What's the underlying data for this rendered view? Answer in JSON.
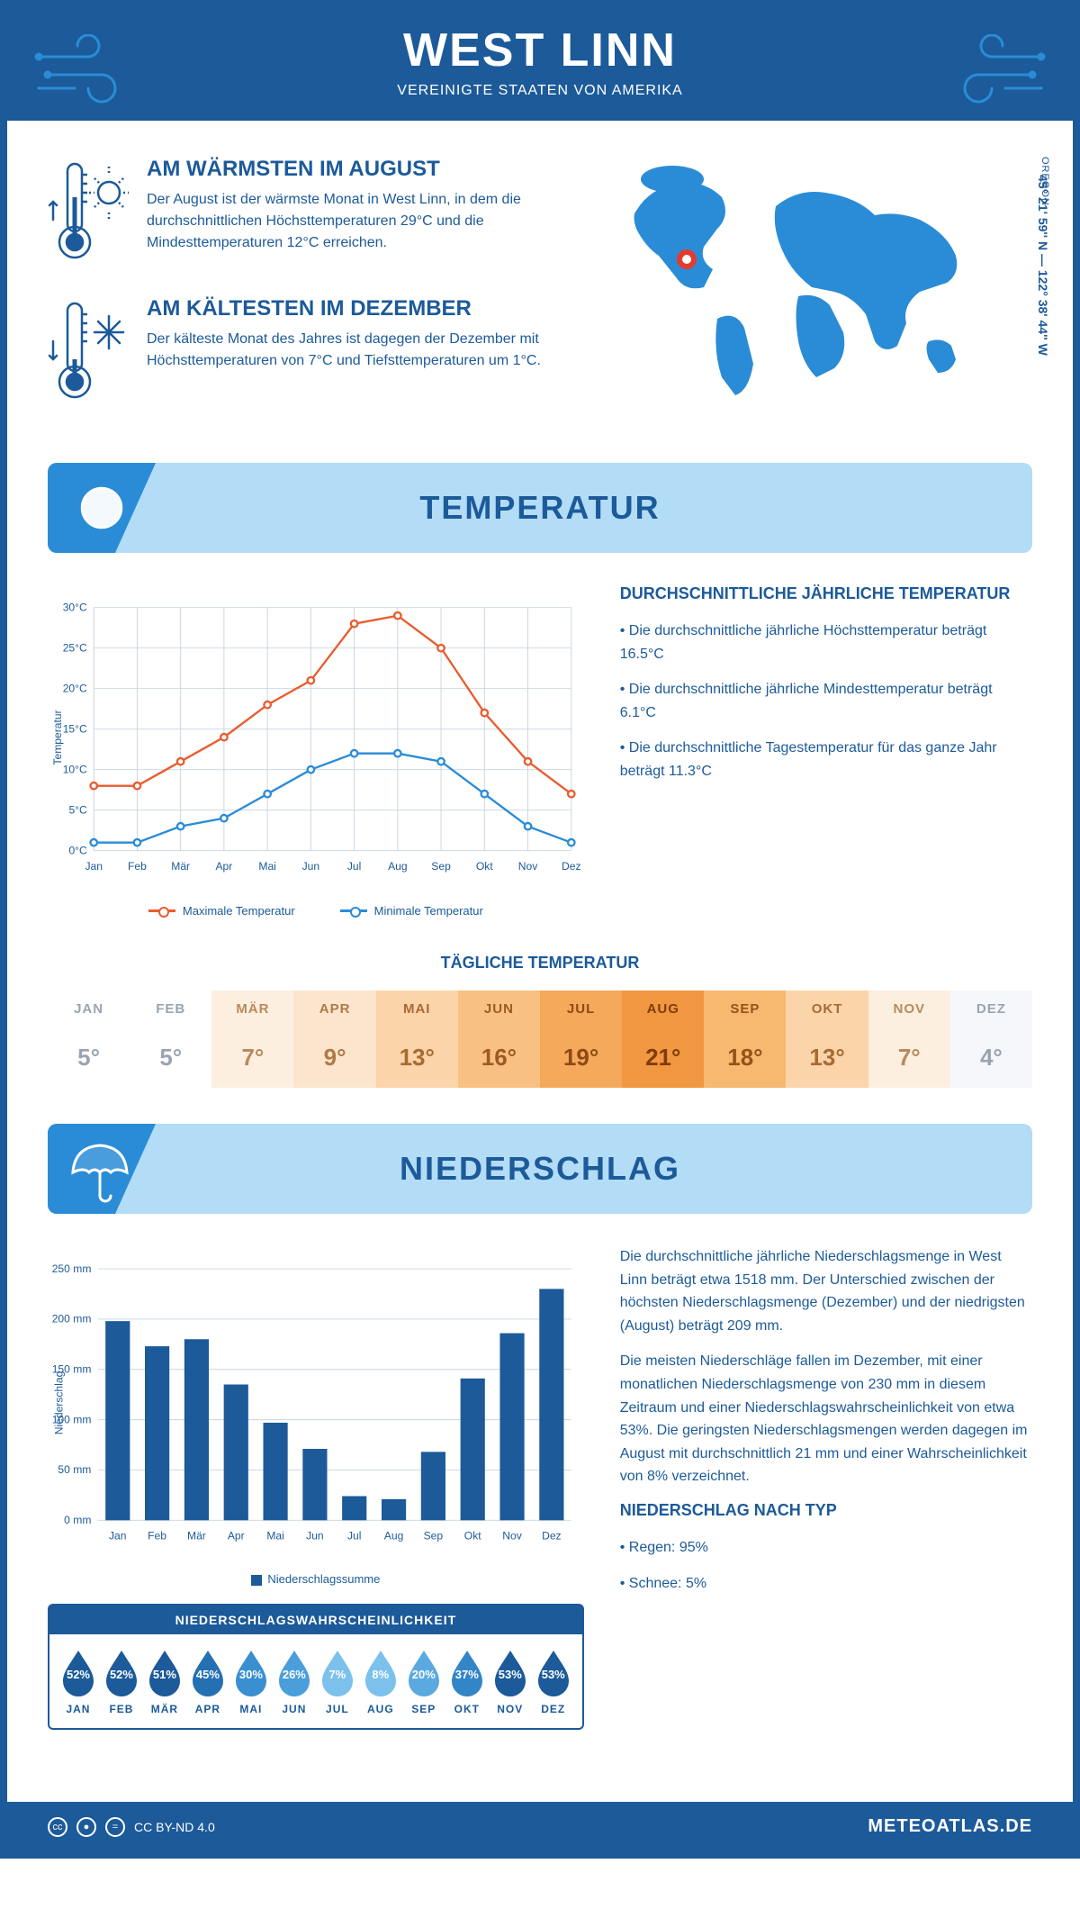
{
  "header": {
    "title": "WEST LINN",
    "subtitle": "VEREINIGTE STAATEN VON AMERIKA"
  },
  "location": {
    "region": "OREGON",
    "coords": "45° 21' 59'' N — 122° 38' 44'' W"
  },
  "facts": {
    "warm": {
      "title": "AM WÄRMSTEN IM AUGUST",
      "text": "Der August ist der wärmste Monat in West Linn, in dem die durchschnittlichen Höchsttemperaturen 29°C und die Mindesttemperaturen 12°C erreichen."
    },
    "cold": {
      "title": "AM KÄLTESTEN IM DEZEMBER",
      "text": "Der kälteste Monat des Jahres ist dagegen der Dezember mit Höchsttemperaturen von 7°C und Tiefsttemperaturen um 1°C."
    }
  },
  "temp_section": {
    "title": "TEMPERATUR",
    "chart": {
      "months": [
        "Jan",
        "Feb",
        "Mär",
        "Apr",
        "Mai",
        "Jun",
        "Jul",
        "Aug",
        "Sep",
        "Okt",
        "Nov",
        "Dez"
      ],
      "max_values": [
        8,
        8,
        11,
        14,
        18,
        21,
        28,
        29,
        25,
        17,
        11,
        7
      ],
      "min_values": [
        1,
        1,
        3,
        4,
        7,
        10,
        12,
        12,
        11,
        7,
        3,
        1
      ],
      "ymin": 0,
      "ymax": 30,
      "ystep": 5,
      "max_color": "#e85c2f",
      "min_color": "#2a8cd6",
      "grid_color": "#c8d4e0",
      "ylabel": "Temperatur",
      "legend_max": "Maximale Temperatur",
      "legend_min": "Minimale Temperatur"
    },
    "summary": {
      "heading": "DURCHSCHNITTLICHE JÄHRLICHE TEMPERATUR",
      "b1": "• Die durchschnittliche jährliche Höchsttemperatur beträgt 16.5°C",
      "b2": "• Die durchschnittliche jährliche Mindesttemperatur beträgt 6.1°C",
      "b3": "• Die durchschnittliche Tagestemperatur für das ganze Jahr beträgt 11.3°C"
    },
    "daily": {
      "title": "TÄGLICHE TEMPERATUR",
      "months": [
        "JAN",
        "FEB",
        "MÄR",
        "APR",
        "MAI",
        "JUN",
        "JUL",
        "AUG",
        "SEP",
        "OKT",
        "NOV",
        "DEZ"
      ],
      "values": [
        "5°",
        "5°",
        "7°",
        "9°",
        "13°",
        "16°",
        "19°",
        "21°",
        "18°",
        "13°",
        "7°",
        "4°"
      ],
      "bg_colors": [
        "#ffffff",
        "#ffffff",
        "#fdefe0",
        "#fce5cd",
        "#fbd4a9",
        "#f9c181",
        "#f5a95b",
        "#f29741",
        "#f7b86f",
        "#fbd4a9",
        "#fdefe0",
        "#f6f7fb"
      ],
      "text_colors": [
        "#9aa4b0",
        "#9aa4b0",
        "#b88a5a",
        "#b07a44",
        "#a86a34",
        "#9e5a24",
        "#8e4a14",
        "#7e3d08",
        "#965218",
        "#a86a34",
        "#b88a5a",
        "#9aa4b0"
      ]
    }
  },
  "precip_section": {
    "title": "NIEDERSCHLAG",
    "chart": {
      "months": [
        "Jan",
        "Feb",
        "Mär",
        "Apr",
        "Mai",
        "Jun",
        "Jul",
        "Aug",
        "Sep",
        "Okt",
        "Nov",
        "Dez"
      ],
      "values": [
        198,
        173,
        180,
        135,
        97,
        71,
        24,
        21,
        68,
        141,
        186,
        230
      ],
      "ymin": 0,
      "ymax": 250,
      "ystep": 50,
      "bar_color": "#1c5a99",
      "grid_color": "#c8d4e0",
      "ylabel": "Niederschlag",
      "legend": "Niederschlagssumme"
    },
    "text": {
      "p1": "Die durchschnittliche jährliche Niederschlagsmenge in West Linn beträgt etwa 1518 mm. Der Unterschied zwischen der höchsten Niederschlagsmenge (Dezember) und der niedrigsten (August) beträgt 209 mm.",
      "p2": "Die meisten Niederschläge fallen im Dezember, mit einer monatlichen Niederschlagsmenge von 230 mm in diesem Zeitraum und einer Niederschlagswahrscheinlichkeit von etwa 53%. Die geringsten Niederschlagsmengen werden dagegen im August mit durchschnittlich 21 mm und einer Wahrscheinlichkeit von 8% verzeichnet.",
      "h": "NIEDERSCHLAG NACH TYP",
      "t1": "• Regen: 95%",
      "t2": "• Schnee: 5%"
    },
    "prob": {
      "title": "NIEDERSCHLAGSWAHRSCHEINLICHKEIT",
      "months": [
        "JAN",
        "FEB",
        "MÄR",
        "APR",
        "MAI",
        "JUN",
        "JUL",
        "AUG",
        "SEP",
        "OKT",
        "NOV",
        "DEZ"
      ],
      "values": [
        "52%",
        "52%",
        "51%",
        "45%",
        "30%",
        "26%",
        "7%",
        "8%",
        "20%",
        "37%",
        "53%",
        "53%"
      ],
      "colors": [
        "#1c5a99",
        "#1c5a99",
        "#1c5a99",
        "#2570b3",
        "#3a8fd1",
        "#4a9edb",
        "#7bc1ec",
        "#7bc1ec",
        "#5aa9e0",
        "#3285c7",
        "#1c5a99",
        "#1c5a99"
      ]
    }
  },
  "footer": {
    "license": "CC BY-ND 4.0",
    "brand": "METEOATLAS.DE"
  },
  "colors": {
    "primary": "#1c5a99",
    "accent": "#2a8cd6",
    "banner_bg": "#b3dcf7"
  }
}
